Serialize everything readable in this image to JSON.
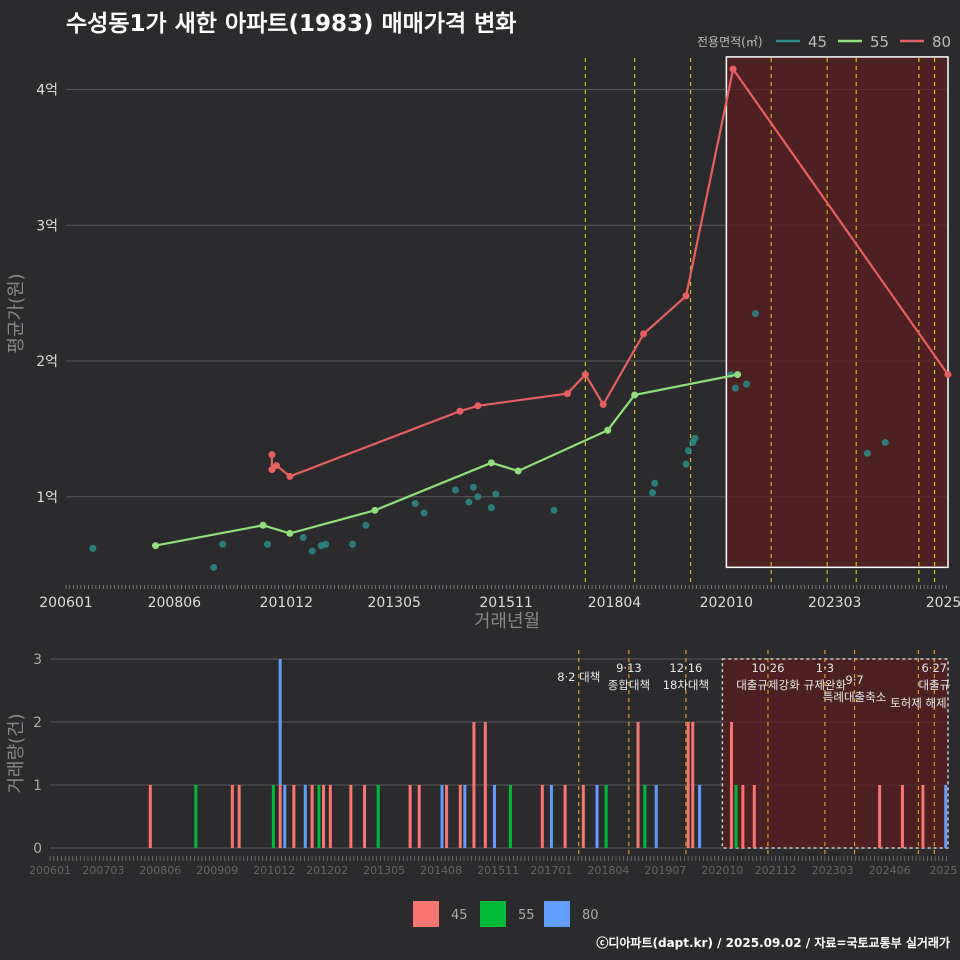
{
  "title": "수성동1가 새한 아파트(1983) 매매가격 변화",
  "credit": "ⓒ디아파트(dapt.kr) / 2025.09.02 / 자료=국토교통부 실거래가",
  "colors": {
    "s45": "#2a8c88",
    "s55": "#90e07a",
    "s80": "#e85f5f",
    "bar45": "#f87570",
    "bar55": "#00ba38",
    "bar80": "#619cff",
    "vline": "#d4c317",
    "highlight": "#5a1e1e"
  },
  "chart_data": [
    {
      "type": "line",
      "title": "수성동1가 새한 아파트(1983) 매매가격 변화",
      "xlabel": "거래년월",
      "ylabel": "평균가(원)",
      "legend_title": "전용면적(㎡)",
      "legend_position": "top-right",
      "xlim": [
        2006.0,
        2025.7
      ],
      "ylim": [
        0.35,
        4.35
      ],
      "x_ticks": [
        "200601",
        "200806",
        "201012",
        "201305",
        "201511",
        "201804",
        "202010",
        "202303",
        "2025"
      ],
      "y_ticks": [
        "1억",
        "2억",
        "3억",
        "4억"
      ],
      "policy_lines": [
        2017.6,
        2018.7,
        2019.95,
        2021.75,
        2023.0,
        2023.65,
        2025.05,
        2025.4
      ],
      "highlight_range": [
        2020.75,
        2025.7
      ],
      "series": [
        {
          "name": "45",
          "mode": "points",
          "points": [
            [
              2006.6,
              0.62
            ],
            [
              2009.3,
              0.48
            ],
            [
              2009.5,
              0.65
            ],
            [
              2010.5,
              0.65
            ],
            [
              2011.3,
              0.7
            ],
            [
              2011.5,
              0.6
            ],
            [
              2011.7,
              0.64
            ],
            [
              2011.8,
              0.65
            ],
            [
              2012.4,
              0.65
            ],
            [
              2012.7,
              0.79
            ],
            [
              2013.8,
              0.95
            ],
            [
              2014.0,
              0.88
            ],
            [
              2014.7,
              1.05
            ],
            [
              2015.0,
              0.96
            ],
            [
              2015.1,
              1.07
            ],
            [
              2015.2,
              1.0
            ],
            [
              2015.5,
              0.92
            ],
            [
              2015.6,
              1.02
            ],
            [
              2016.9,
              0.9
            ],
            [
              2019.1,
              1.03
            ],
            [
              2019.15,
              1.1
            ],
            [
              2019.85,
              1.24
            ],
            [
              2019.9,
              1.34
            ],
            [
              2020.0,
              1.4
            ],
            [
              2020.05,
              1.43
            ],
            [
              2020.85,
              1.9
            ],
            [
              2020.95,
              1.8
            ],
            [
              2021.2,
              1.83
            ],
            [
              2021.4,
              2.35
            ],
            [
              2023.9,
              1.32
            ],
            [
              2024.3,
              1.4
            ]
          ]
        },
        {
          "name": "55",
          "mode": "line",
          "points": [
            [
              2008.0,
              0.64
            ],
            [
              2010.4,
              0.79
            ],
            [
              2011.0,
              0.73
            ],
            [
              2012.9,
              0.9
            ],
            [
              2015.5,
              1.25
            ],
            [
              2016.1,
              1.19
            ],
            [
              2018.1,
              1.49
            ],
            [
              2018.7,
              1.75
            ],
            [
              2021.0,
              1.9
            ]
          ]
        },
        {
          "name": "80",
          "mode": "line",
          "points": [
            [
              2010.6,
              1.31
            ],
            [
              2010.6,
              1.2
            ],
            [
              2010.7,
              1.23
            ],
            [
              2011.0,
              1.15
            ],
            [
              2014.8,
              1.63
            ],
            [
              2015.2,
              1.67
            ],
            [
              2017.2,
              1.76
            ],
            [
              2017.6,
              1.9
            ],
            [
              2018.0,
              1.68
            ],
            [
              2018.9,
              2.2
            ],
            [
              2019.85,
              2.48
            ],
            [
              2020.9,
              4.15
            ],
            [
              2025.7,
              1.9
            ]
          ]
        }
      ]
    },
    {
      "type": "bar",
      "ylabel": "거래량(건)",
      "xlim": [
        2006.0,
        2025.7
      ],
      "ylim": [
        0,
        3
      ],
      "y_ticks": [
        "0",
        "1",
        "2",
        "3"
      ],
      "x_ticks": [
        "200601",
        "200703",
        "200806",
        "200909",
        "201012",
        "201202",
        "201305",
        "201408",
        "201511",
        "201701",
        "201804",
        "201907",
        "202010",
        "202112",
        "202303",
        "202406",
        "2025"
      ],
      "legend": [
        "45",
        "55",
        "80"
      ],
      "legend_position": "bottom",
      "highlight_range": [
        2020.75,
        2025.7
      ],
      "annotations": [
        {
          "x": 2017.6,
          "lines": [
            "8·2 대책"
          ],
          "row": 1
        },
        {
          "x": 2018.7,
          "lines": [
            "9·13",
            "종합대책"
          ],
          "row": 0
        },
        {
          "x": 2019.95,
          "lines": [
            "12·16",
            "18차대책"
          ],
          "row": 0
        },
        {
          "x": 2021.75,
          "lines": [
            "10·26",
            "대출규제강화"
          ],
          "row": 0
        },
        {
          "x": 2023.0,
          "lines": [
            "1·3",
            "규제완화"
          ],
          "row": 0
        },
        {
          "x": 2023.65,
          "lines": [
            "9·7",
            "특례대출축소"
          ],
          "row": 1
        },
        {
          "x": 2025.05,
          "lines": [
            "토허제 해제"
          ],
          "row": 2
        },
        {
          "x": 2025.4,
          "lines": [
            "6·27",
            "대출규"
          ],
          "row": 0
        }
      ],
      "bars": [
        {
          "x": 2008.2,
          "s45": 1,
          "s55": 0,
          "s80": 0
        },
        {
          "x": 2009.2,
          "s45": 0,
          "s55": 1,
          "s80": 0
        },
        {
          "x": 2010.0,
          "s45": 1,
          "s55": 0,
          "s80": 0
        },
        {
          "x": 2010.15,
          "s45": 1,
          "s55": 0,
          "s80": 0
        },
        {
          "x": 2010.9,
          "s45": 0,
          "s55": 1,
          "s80": 0
        },
        {
          "x": 2011.05,
          "s45": 1,
          "s55": 0,
          "s80": 2
        },
        {
          "x": 2011.15,
          "s45": 0,
          "s55": 0,
          "s80": 1
        },
        {
          "x": 2011.35,
          "s45": 1,
          "s55": 0,
          "s80": 0
        },
        {
          "x": 2011.6,
          "s45": 0,
          "s55": 0,
          "s80": 1
        },
        {
          "x": 2011.75,
          "s45": 1,
          "s55": 0,
          "s80": 0
        },
        {
          "x": 2011.9,
          "s45": 0,
          "s55": 1,
          "s80": 0
        },
        {
          "x": 2012.0,
          "s45": 1,
          "s55": 0,
          "s80": 0
        },
        {
          "x": 2012.15,
          "s45": 1,
          "s55": 0,
          "s80": 0
        },
        {
          "x": 2012.6,
          "s45": 1,
          "s55": 0,
          "s80": 0
        },
        {
          "x": 2012.9,
          "s45": 1,
          "s55": 0,
          "s80": 0
        },
        {
          "x": 2013.2,
          "s45": 0,
          "s55": 1,
          "s80": 0
        },
        {
          "x": 2013.9,
          "s45": 1,
          "s55": 0,
          "s80": 0
        },
        {
          "x": 2014.1,
          "s45": 1,
          "s55": 0,
          "s80": 0
        },
        {
          "x": 2014.6,
          "s45": 0,
          "s55": 0,
          "s80": 1
        },
        {
          "x": 2014.7,
          "s45": 1,
          "s55": 0,
          "s80": 0
        },
        {
          "x": 2015.0,
          "s45": 1,
          "s55": 0,
          "s80": 0
        },
        {
          "x": 2015.1,
          "s45": 0,
          "s55": 0,
          "s80": 1
        },
        {
          "x": 2015.3,
          "s45": 2,
          "s55": 0,
          "s80": 0
        },
        {
          "x": 2015.55,
          "s45": 2,
          "s55": 0,
          "s80": 0
        },
        {
          "x": 2015.75,
          "s45": 0,
          "s55": 0,
          "s80": 1
        },
        {
          "x": 2016.1,
          "s45": 0,
          "s55": 1,
          "s80": 0
        },
        {
          "x": 2016.8,
          "s45": 1,
          "s55": 0,
          "s80": 0
        },
        {
          "x": 2017.0,
          "s45": 0,
          "s55": 0,
          "s80": 1
        },
        {
          "x": 2017.3,
          "s45": 1,
          "s55": 0,
          "s80": 0
        },
        {
          "x": 2017.7,
          "s45": 1,
          "s55": 0,
          "s80": 0
        },
        {
          "x": 2018.0,
          "s45": 0,
          "s55": 0,
          "s80": 1
        },
        {
          "x": 2018.2,
          "s45": 0,
          "s55": 1,
          "s80": 0
        },
        {
          "x": 2018.9,
          "s45": 2,
          "s55": 0,
          "s80": 0
        },
        {
          "x": 2019.05,
          "s45": 0,
          "s55": 1,
          "s80": 0
        },
        {
          "x": 2019.3,
          "s45": 0,
          "s55": 0,
          "s80": 1
        },
        {
          "x": 2020.0,
          "s45": 2,
          "s55": 0,
          "s80": 0
        },
        {
          "x": 2020.1,
          "s45": 2,
          "s55": 0,
          "s80": 0
        },
        {
          "x": 2020.25,
          "s45": 0,
          "s55": 0,
          "s80": 1
        },
        {
          "x": 2020.95,
          "s45": 2,
          "s55": 0,
          "s80": 0
        },
        {
          "x": 2021.05,
          "s45": 0,
          "s55": 1,
          "s80": 0
        },
        {
          "x": 2021.2,
          "s45": 1,
          "s55": 0,
          "s80": 0
        },
        {
          "x": 2021.45,
          "s45": 1,
          "s55": 0,
          "s80": 0
        },
        {
          "x": 2024.2,
          "s45": 1,
          "s55": 0,
          "s80": 0
        },
        {
          "x": 2024.7,
          "s45": 1,
          "s55": 0,
          "s80": 0
        },
        {
          "x": 2025.15,
          "s45": 1,
          "s55": 0,
          "s80": 0
        },
        {
          "x": 2025.65,
          "s45": 0,
          "s55": 0,
          "s80": 1
        }
      ]
    }
  ]
}
